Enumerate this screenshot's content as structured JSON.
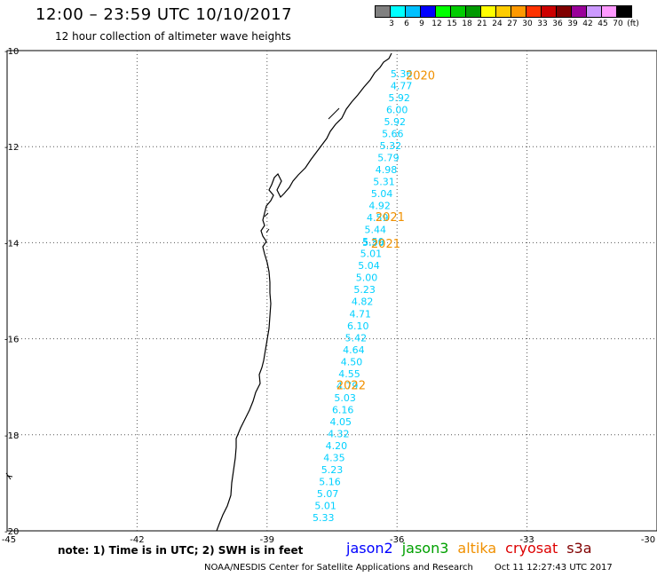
{
  "title": "12:00 – 23:59 UTC 10/10/2017",
  "subtitle": "12 hour collection of altimeter wave heights",
  "color_scale": {
    "labels": [
      "3",
      "6",
      "9",
      "12",
      "15",
      "18",
      "21",
      "24",
      "27",
      "30",
      "33",
      "36",
      "39",
      "42",
      "45",
      "70",
      "(ft)"
    ],
    "colors": [
      "#808080",
      "#00ffff",
      "#00c0ff",
      "#0000ff",
      "#00ff00",
      "#00cc00",
      "#009900",
      "#ffff00",
      "#ffcc00",
      "#ff9900",
      "#ff3300",
      "#cc0000",
      "#800000",
      "#990099",
      "#cc99ff",
      "#ff99ff",
      "#000000"
    ]
  },
  "axes": {
    "x_ticks": [
      {
        "value": -45,
        "label": "-45"
      },
      {
        "value": -42,
        "label": "-42"
      },
      {
        "value": -39,
        "label": "-39"
      },
      {
        "value": -36,
        "label": "-36"
      },
      {
        "value": -33,
        "label": "-33"
      },
      {
        "value": -30,
        "label": "-30"
      }
    ],
    "y_ticks": [
      {
        "value": -10,
        "label": "-10"
      },
      {
        "value": -12,
        "label": "-12"
      },
      {
        "value": -14,
        "label": "-14"
      },
      {
        "value": -16,
        "label": "-16"
      },
      {
        "value": -18,
        "label": "-18"
      },
      {
        "value": -20,
        "label": "-20"
      }
    ],
    "lon_range": [
      -45,
      -30
    ],
    "lat_range": [
      -20,
      -10
    ],
    "grid": "dotted"
  },
  "wave_heights": [
    {
      "lon": -35.9,
      "lat": -10.55,
      "value": "5.36"
    },
    {
      "lon": -35.9,
      "lat": -10.8,
      "value": "4.77"
    },
    {
      "lon": -35.95,
      "lat": -11.05,
      "value": "5.92"
    },
    {
      "lon": -36.0,
      "lat": -11.3,
      "value": "6.00"
    },
    {
      "lon": -36.05,
      "lat": -11.55,
      "value": "5.92"
    },
    {
      "lon": -36.1,
      "lat": -11.8,
      "value": "5.66"
    },
    {
      "lon": -36.15,
      "lat": -12.05,
      "value": "5.32"
    },
    {
      "lon": -36.2,
      "lat": -12.3,
      "value": "5.79"
    },
    {
      "lon": -36.25,
      "lat": -12.55,
      "value": "4.98"
    },
    {
      "lon": -36.3,
      "lat": -12.8,
      "value": "5.31"
    },
    {
      "lon": -36.35,
      "lat": -13.05,
      "value": "5.04"
    },
    {
      "lon": -36.4,
      "lat": -13.3,
      "value": "4.92"
    },
    {
      "lon": -36.45,
      "lat": -13.55,
      "value": "4.59"
    },
    {
      "lon": -36.5,
      "lat": -13.8,
      "value": "5.44"
    },
    {
      "lon": -36.55,
      "lat": -14.05,
      "value": "5.50"
    },
    {
      "lon": -36.55,
      "lat": -14.07,
      "value": "5.36"
    },
    {
      "lon": -36.6,
      "lat": -14.3,
      "value": "5.01"
    },
    {
      "lon": -36.65,
      "lat": -14.55,
      "value": "5.04"
    },
    {
      "lon": -36.7,
      "lat": -14.8,
      "value": "5.00"
    },
    {
      "lon": -36.75,
      "lat": -15.05,
      "value": "5.23"
    },
    {
      "lon": -36.8,
      "lat": -15.3,
      "value": "4.82"
    },
    {
      "lon": -36.85,
      "lat": -15.55,
      "value": "4.71"
    },
    {
      "lon": -36.9,
      "lat": -15.8,
      "value": "6.10"
    },
    {
      "lon": -36.95,
      "lat": -16.05,
      "value": "5.42"
    },
    {
      "lon": -37.0,
      "lat": -16.3,
      "value": "4.64"
    },
    {
      "lon": -37.05,
      "lat": -16.55,
      "value": "4.50"
    },
    {
      "lon": -37.1,
      "lat": -16.8,
      "value": "4.55"
    },
    {
      "lon": -37.15,
      "lat": -17.05,
      "value": "4.79"
    },
    {
      "lon": -37.2,
      "lat": -17.3,
      "value": "5.03"
    },
    {
      "lon": -37.25,
      "lat": -17.55,
      "value": "6.16"
    },
    {
      "lon": -37.3,
      "lat": -17.8,
      "value": "4.05"
    },
    {
      "lon": -37.35,
      "lat": -18.05,
      "value": "4.32"
    },
    {
      "lon": -37.4,
      "lat": -18.3,
      "value": "4.20"
    },
    {
      "lon": -37.45,
      "lat": -18.55,
      "value": "4.35"
    },
    {
      "lon": -37.5,
      "lat": -18.8,
      "value": "5.23"
    },
    {
      "lon": -37.55,
      "lat": -19.05,
      "value": "5.16"
    },
    {
      "lon": -37.6,
      "lat": -19.3,
      "value": "5.07"
    },
    {
      "lon": -37.65,
      "lat": -19.55,
      "value": "5.01"
    },
    {
      "lon": -37.7,
      "lat": -19.8,
      "value": "5.33"
    }
  ],
  "pass_labels": [
    {
      "lon": -35.8,
      "lat": -10.6,
      "text": "2020"
    },
    {
      "lon": -36.5,
      "lat": -13.55,
      "text": "2021"
    },
    {
      "lon": -36.6,
      "lat": -14.1,
      "text": "2021"
    },
    {
      "lon": -37.4,
      "lat": -17.05,
      "text": "2022"
    }
  ],
  "wave_color": "#00d0ff",
  "pass_color": "#f09000",
  "note": "note: 1) Time is in UTC; 2) SWH is in feet",
  "legend": [
    {
      "name": "jason2",
      "color": "#0000ff"
    },
    {
      "name": "jason3",
      "color": "#00a000"
    },
    {
      "name": "altika",
      "color": "#f09000"
    },
    {
      "name": "cryosat",
      "color": "#dd0000"
    },
    {
      "name": "s3a",
      "color": "#800000"
    }
  ],
  "credit": "NOAA/NESDIS Center for Satellite Applications and Research",
  "timestamp": "Oct 11 12:27:43 UTC 2017"
}
